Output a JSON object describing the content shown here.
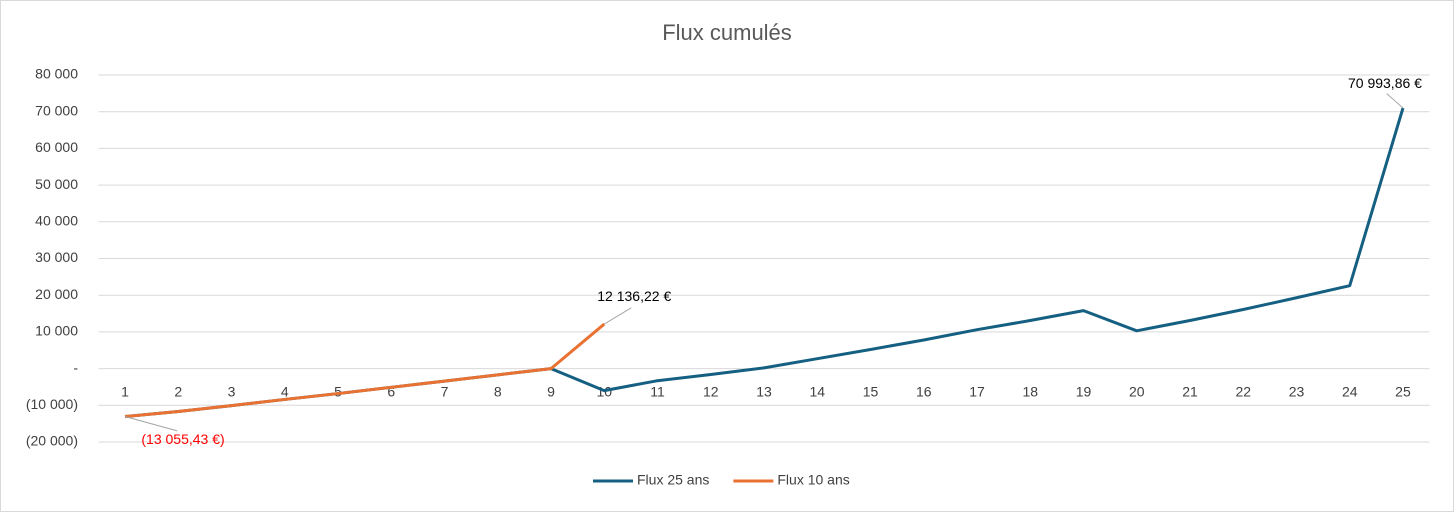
{
  "chart_data": {
    "type": "line",
    "title": "Flux cumulés",
    "categories": [
      1,
      2,
      3,
      4,
      5,
      6,
      7,
      8,
      9,
      10,
      11,
      12,
      13,
      14,
      15,
      16,
      17,
      18,
      19,
      20,
      21,
      22,
      23,
      24,
      25
    ],
    "series": [
      {
        "name": "Flux 25 ans",
        "color": "#156082",
        "values": [
          -13055.43,
          -11700,
          -10100,
          -8400,
          -6800,
          -5100,
          -3400,
          -1700,
          0,
          -6000,
          -3300,
          -1600,
          200,
          2700,
          5200,
          7800,
          10600,
          13100,
          15800,
          10300,
          13100,
          16100,
          19300,
          22600,
          70993.86
        ],
        "value_labels": [
          null,
          null,
          null,
          null,
          null,
          null,
          null,
          null,
          null,
          null,
          null,
          null,
          null,
          null,
          null,
          null,
          null,
          null,
          null,
          null,
          null,
          null,
          null,
          null,
          "70 993,86  €"
        ]
      },
      {
        "name": "Flux 10 ans",
        "color": "#e97132",
        "values": [
          -13055.43,
          -11700,
          -10100,
          -8400,
          -6800,
          -5100,
          -3400,
          -1700,
          0,
          12136.22,
          null,
          null,
          null,
          null,
          null,
          null,
          null,
          null,
          null,
          null,
          null,
          null,
          null,
          null,
          null
        ],
        "value_labels": [
          "(13 055,43 €)",
          null,
          null,
          null,
          null,
          null,
          null,
          null,
          null,
          "12 136,22 €",
          null,
          null,
          null,
          null,
          null,
          null,
          null,
          null,
          null,
          null,
          null,
          null,
          null,
          null,
          null
        ]
      }
    ],
    "ylim": [
      -20000,
      80000
    ],
    "yticks": [
      {
        "value": -20000,
        "label": "(20 000)"
      },
      {
        "value": -10000,
        "label": "(10 000)"
      },
      {
        "value": 0,
        "label": "-"
      },
      {
        "value": 10000,
        "label": "10 000"
      },
      {
        "value": 20000,
        "label": "20 000"
      },
      {
        "value": 30000,
        "label": "30 000"
      },
      {
        "value": 40000,
        "label": "40 000"
      },
      {
        "value": 50000,
        "label": "50 000"
      },
      {
        "value": 60000,
        "label": "60 000"
      },
      {
        "value": 70000,
        "label": "70 000"
      },
      {
        "value": 80000,
        "label": "80 000"
      }
    ],
    "grid": true,
    "legend": "bottom",
    "negative_label_color": "#ff0000"
  }
}
